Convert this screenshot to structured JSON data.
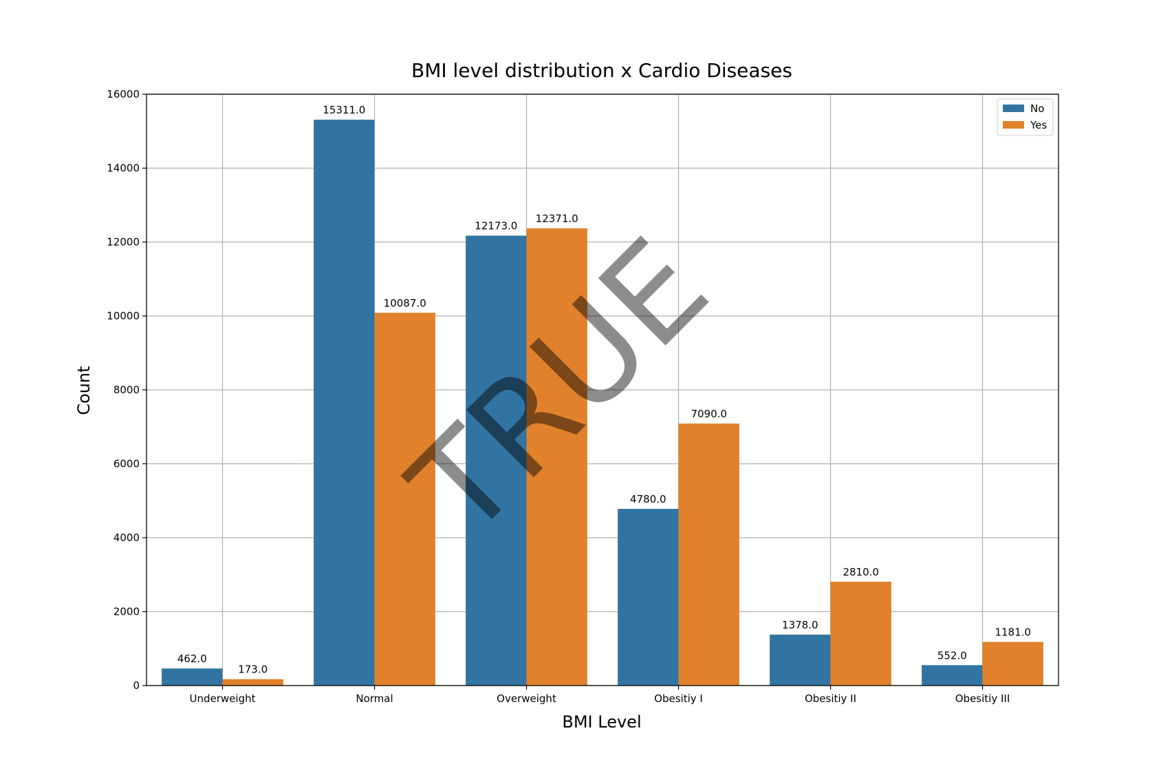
{
  "chart_data": {
    "type": "bar",
    "title": "BMI level distribution x Cardio Diseases",
    "xlabel": "BMI Level",
    "ylabel": "Count",
    "categories": [
      "Underweight",
      "Normal",
      "Overweight",
      "Obesitiy I",
      "Obesitiy II",
      "Obesitiy III"
    ],
    "series": [
      {
        "name": "No",
        "color": "#3274a1",
        "values": [
          462.0,
          15311.0,
          12173.0,
          4780.0,
          1378.0,
          552.0
        ],
        "labels": [
          "462.0",
          "15311.0",
          "12173.0",
          "4780.0",
          "1378.0",
          "552.0"
        ]
      },
      {
        "name": "Yes",
        "color": "#e1812c",
        "values": [
          173.0,
          10087.0,
          12371.0,
          7090.0,
          2810.0,
          1181.0
        ],
        "labels": [
          "173.0",
          "10087.0",
          "12371.0",
          "7090.0",
          "2810.0",
          "1181.0"
        ]
      }
    ],
    "ylim": [
      0,
      16000
    ],
    "yticks": [
      0,
      2000,
      4000,
      6000,
      8000,
      10000,
      12000,
      14000,
      16000
    ],
    "ytick_labels": [
      "0",
      "2000",
      "4000",
      "6000",
      "8000",
      "10000",
      "12000",
      "14000",
      "16000"
    ],
    "grid": true,
    "legend_position": "top-right"
  },
  "watermark": {
    "text": "TRUE"
  }
}
